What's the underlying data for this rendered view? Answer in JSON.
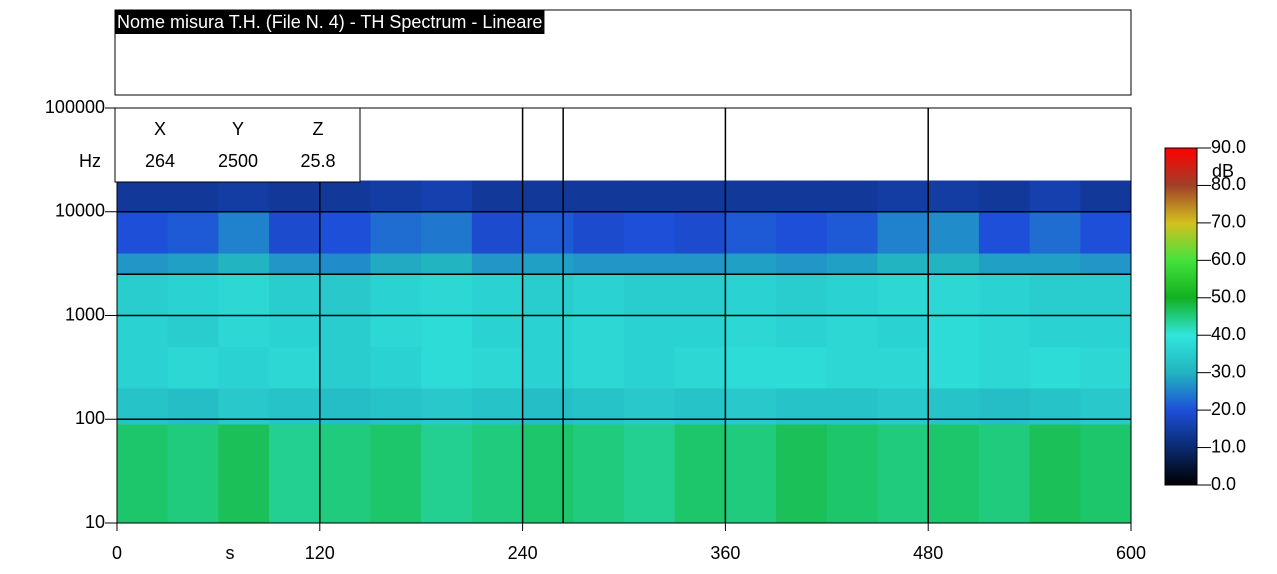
{
  "chart_data": {
    "type": "heatmap",
    "title": "Nome misura T.H.  (File N. 4) - TH Spectrum - Lineare",
    "x_unit": "s",
    "y_unit": "Hz",
    "z_unit": "dB",
    "xlim": [
      0,
      600
    ],
    "xticks": [
      0,
      120,
      240,
      360,
      480,
      600
    ],
    "ylim": [
      10,
      100000
    ],
    "yticks": [
      10,
      100,
      1000,
      10000,
      100000
    ],
    "log_y": true,
    "grid": true,
    "x_edges": [
      0,
      30,
      60,
      90,
      120,
      150,
      180,
      210,
      240,
      270,
      300,
      330,
      360,
      390,
      420,
      450,
      480,
      510,
      540,
      570,
      600
    ],
    "y_edges": [
      10,
      90,
      200,
      500,
      1000,
      2500,
      4000,
      10000,
      20000
    ],
    "z": [
      [
        46,
        45,
        47,
        44,
        45,
        46,
        44,
        45,
        46,
        45,
        44,
        46,
        45,
        47,
        46,
        45,
        46,
        45,
        47,
        46
      ],
      [
        33,
        32,
        34,
        33,
        32,
        33,
        34,
        33,
        32,
        33,
        34,
        33,
        34,
        33,
        33,
        34,
        33,
        32,
        33,
        34
      ],
      [
        36,
        37,
        36,
        37,
        35,
        36,
        38,
        37,
        36,
        37,
        36,
        37,
        38,
        38,
        37,
        37,
        38,
        37,
        38,
        37
      ],
      [
        36,
        35,
        37,
        36,
        35,
        37,
        38,
        36,
        36,
        37,
        36,
        36,
        37,
        36,
        37,
        36,
        38,
        37,
        36,
        36
      ],
      [
        35,
        36,
        37,
        35,
        34,
        36,
        37,
        36,
        35,
        36,
        35,
        35,
        36,
        35,
        36,
        37,
        37,
        36,
        35,
        35
      ],
      [
        27,
        28,
        30,
        27,
        26,
        29,
        30,
        27,
        28,
        27,
        27,
        27,
        28,
        27,
        28,
        30,
        30,
        28,
        28,
        27
      ],
      [
        20,
        21,
        25,
        19,
        20,
        23,
        24,
        19,
        21,
        19,
        20,
        19,
        21,
        20,
        21,
        25,
        26,
        20,
        23,
        20
      ],
      [
        14,
        14,
        15,
        14,
        14,
        15,
        16,
        14,
        14,
        14,
        14,
        14,
        14,
        14,
        14,
        15,
        15,
        14,
        16,
        14
      ]
    ],
    "colorscale": [
      {
        "value": 0,
        "color": "#000000"
      },
      {
        "value": 10,
        "color": "#0a2a70"
      },
      {
        "value": 20,
        "color": "#1e4fd8"
      },
      {
        "value": 30,
        "color": "#22b4c0"
      },
      {
        "value": 40,
        "color": "#30e6dc"
      },
      {
        "value": 50,
        "color": "#12b020"
      },
      {
        "value": 60,
        "color": "#44e23c"
      },
      {
        "value": 70,
        "color": "#d4c020"
      },
      {
        "value": 80,
        "color": "#a04028"
      },
      {
        "value": 90,
        "color": "#ff0000"
      }
    ],
    "zlim": [
      0,
      90
    ],
    "zticks": [
      {
        "value": 0,
        "label": "0.0"
      },
      {
        "value": 10,
        "label": "10.0"
      },
      {
        "value": 20,
        "label": "20.0"
      },
      {
        "value": 30,
        "label": "30.0"
      },
      {
        "value": 40,
        "label": "40.0"
      },
      {
        "value": 50,
        "label": "50.0"
      },
      {
        "value": 60,
        "label": "60.0"
      },
      {
        "value": 70,
        "label": "70.0"
      },
      {
        "value": 80,
        "label": "80.0"
      },
      {
        "value": 90,
        "label": "90.0"
      }
    ],
    "cursor": {
      "headers": [
        "X",
        "Y",
        "Z"
      ],
      "x": 264,
      "y": 2500,
      "z": 25.8
    }
  }
}
